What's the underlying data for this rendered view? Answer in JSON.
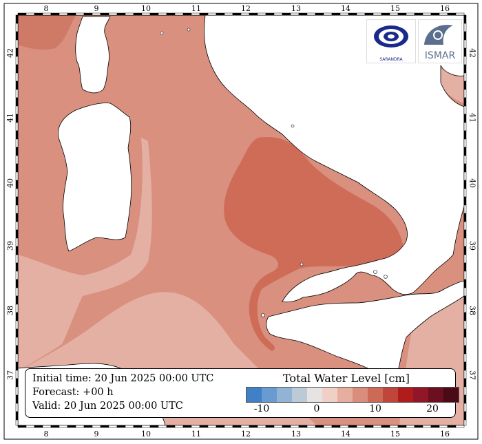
{
  "map": {
    "longitude_ticks": [
      "8",
      "9",
      "10",
      "11",
      "12",
      "13",
      "14",
      "15",
      "16"
    ],
    "latitude_ticks": [
      "42",
      "41",
      "40",
      "39",
      "38",
      "37"
    ]
  },
  "info": {
    "initial_time": "Initial time: 20 Jun 2025 00:00 UTC",
    "forecast": "Forecast: +00 h",
    "valid": "Valid: 20 Jun 2025 00:00 UTC"
  },
  "legend": {
    "title": "Total Water Level [cm]",
    "tick_labels": [
      "-10",
      "0",
      "10",
      "20"
    ],
    "colors": [
      "#3f80c6",
      "#6a9bd0",
      "#93b3d4",
      "#bcc9d6",
      "#e6e3e2",
      "#f0cfc6",
      "#e6ae9f",
      "#d98d7a",
      "#cd6a57",
      "#c0453a",
      "#b01c1c",
      "#901628",
      "#6c0f20",
      "#4a0a16"
    ]
  },
  "colors": {
    "land": "#ffffff",
    "sea_main": "#d9907e",
    "sea_light": "#e4b0a4",
    "sea_dark": "#cf6c58"
  },
  "logos": {
    "left": "Sarandra logo",
    "right": "ISMAR",
    "left_icon": "swirl-eye-icon",
    "right_icon": "wave-icon"
  }
}
